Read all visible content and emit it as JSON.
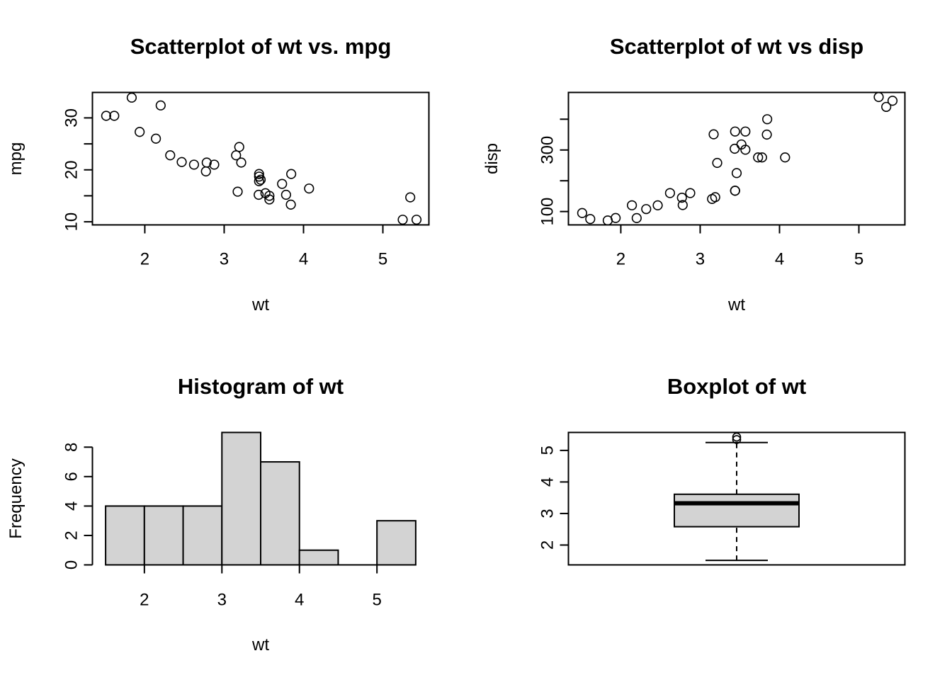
{
  "chart_data": [
    {
      "type": "scatter",
      "title": "Scatterplot of wt vs. mpg",
      "xlabel": "wt",
      "ylabel": "mpg",
      "xlim": [
        1.34,
        5.58
      ],
      "ylim": [
        9.4,
        34.9
      ],
      "xticks": [
        2,
        3,
        4,
        5
      ],
      "yticks": [
        10,
        15,
        20,
        25,
        30
      ],
      "ytick_labels": [
        "10",
        "",
        "20",
        "",
        "30"
      ],
      "points": [
        [
          2.62,
          21.0
        ],
        [
          2.875,
          21.0
        ],
        [
          2.32,
          22.8
        ],
        [
          3.215,
          21.4
        ],
        [
          3.44,
          18.7
        ],
        [
          3.46,
          18.1
        ],
        [
          3.57,
          14.3
        ],
        [
          3.19,
          24.4
        ],
        [
          3.15,
          22.8
        ],
        [
          3.44,
          19.2
        ],
        [
          3.44,
          17.8
        ],
        [
          4.07,
          16.4
        ],
        [
          3.73,
          17.3
        ],
        [
          3.78,
          15.2
        ],
        [
          5.25,
          10.4
        ],
        [
          5.424,
          10.4
        ],
        [
          5.345,
          14.7
        ],
        [
          2.2,
          32.4
        ],
        [
          1.615,
          30.4
        ],
        [
          1.835,
          33.9
        ],
        [
          2.465,
          21.5
        ],
        [
          3.52,
          15.5
        ],
        [
          3.435,
          15.2
        ],
        [
          3.84,
          13.3
        ],
        [
          3.845,
          19.2
        ],
        [
          1.935,
          27.3
        ],
        [
          2.14,
          26.0
        ],
        [
          1.513,
          30.4
        ],
        [
          3.17,
          15.8
        ],
        [
          2.77,
          19.7
        ],
        [
          3.57,
          15.0
        ],
        [
          2.78,
          21.4
        ]
      ]
    },
    {
      "type": "scatter",
      "title": "Scatterplot of wt vs disp",
      "xlabel": "wt",
      "ylabel": "disp",
      "xlim": [
        1.34,
        5.58
      ],
      "ylim": [
        56.6,
        487.0
      ],
      "xticks": [
        2,
        3,
        4,
        5
      ],
      "yticks": [
        100,
        200,
        300,
        400
      ],
      "ytick_labels": [
        "100",
        "",
        "300",
        ""
      ],
      "points": [
        [
          2.62,
          160
        ],
        [
          2.875,
          160
        ],
        [
          2.32,
          108
        ],
        [
          3.215,
          258
        ],
        [
          3.44,
          360
        ],
        [
          3.46,
          225
        ],
        [
          3.57,
          360
        ],
        [
          3.19,
          146.7
        ],
        [
          3.15,
          140.8
        ],
        [
          3.44,
          167.6
        ],
        [
          3.44,
          167.6
        ],
        [
          4.07,
          275.8
        ],
        [
          3.73,
          275.8
        ],
        [
          3.78,
          275.8
        ],
        [
          5.25,
          472
        ],
        [
          5.424,
          460
        ],
        [
          5.345,
          440
        ],
        [
          2.2,
          78.7
        ],
        [
          1.615,
          75.7
        ],
        [
          1.835,
          71.1
        ],
        [
          2.465,
          120.1
        ],
        [
          3.52,
          318
        ],
        [
          3.435,
          304
        ],
        [
          3.84,
          350
        ],
        [
          3.845,
          400
        ],
        [
          1.935,
          79
        ],
        [
          2.14,
          120.3
        ],
        [
          1.513,
          95.1
        ],
        [
          3.17,
          351
        ],
        [
          2.77,
          145
        ],
        [
          3.57,
          301
        ],
        [
          2.78,
          121
        ]
      ]
    },
    {
      "type": "bar",
      "title": "Histogram of wt",
      "xlabel": "wt",
      "ylabel": "Frequency",
      "xlim": [
        1.33,
        5.67
      ],
      "ylim": [
        0,
        9
      ],
      "xticks": [
        2,
        3,
        4,
        5
      ],
      "yticks": [
        0,
        2,
        4,
        6,
        8
      ],
      "bins": [
        {
          "from": 1.5,
          "to": 2.0,
          "count": 4
        },
        {
          "from": 2.0,
          "to": 2.5,
          "count": 4
        },
        {
          "from": 2.5,
          "to": 3.0,
          "count": 4
        },
        {
          "from": 3.0,
          "to": 3.5,
          "count": 9
        },
        {
          "from": 3.5,
          "to": 4.0,
          "count": 7
        },
        {
          "from": 4.0,
          "to": 4.5,
          "count": 1
        },
        {
          "from": 4.5,
          "to": 5.0,
          "count": 0
        },
        {
          "from": 5.0,
          "to": 5.5,
          "count": 3
        }
      ]
    },
    {
      "type": "box",
      "title": "Boxplot of wt",
      "ylim": [
        1.37,
        5.57
      ],
      "yticks": [
        2,
        3,
        4,
        5
      ],
      "min": 1.513,
      "q1": 2.581,
      "median": 3.325,
      "q3": 3.61,
      "whisker_high": 5.25,
      "outliers": [
        5.424,
        5.345
      ]
    }
  ]
}
